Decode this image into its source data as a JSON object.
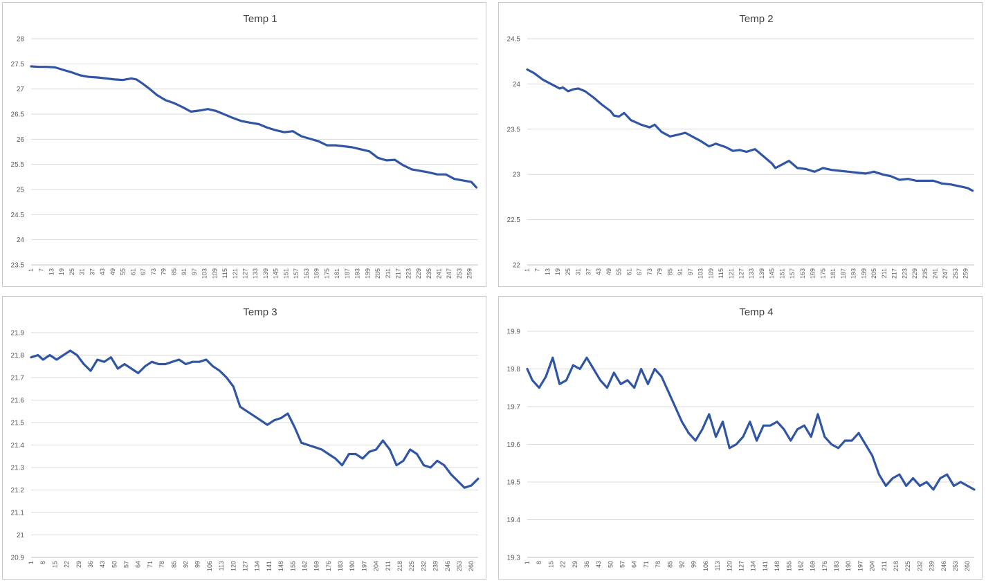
{
  "style": {
    "line_color": "#2f55a4",
    "grid_color": "#d9d9d9"
  },
  "chart_data": [
    {
      "type": "line",
      "title": "Temp 1",
      "ylim": [
        23.5,
        28
      ],
      "yticks": [
        "23.5",
        "24",
        "24.5",
        "25",
        "25.5",
        "26",
        "26.5",
        "27",
        "27.5",
        "28"
      ],
      "xticks": [
        "1",
        "7",
        "13",
        "19",
        "25",
        "31",
        "37",
        "43",
        "49",
        "55",
        "61",
        "67",
        "73",
        "79",
        "85",
        "91",
        "97",
        "103",
        "109",
        "115",
        "121",
        "127",
        "133",
        "139",
        "145",
        "151",
        "157",
        "163",
        "169",
        "175",
        "181",
        "187",
        "193",
        "199",
        "205",
        "211",
        "217",
        "223",
        "229",
        "235",
        "241",
        "247",
        "253",
        "259"
      ],
      "grid": true,
      "series": [
        {
          "x": [
            1,
            6,
            10,
            15,
            20,
            25,
            30,
            35,
            40,
            45,
            50,
            55,
            60,
            63,
            66,
            70,
            75,
            80,
            85,
            90,
            95,
            100,
            105,
            110,
            115,
            120,
            125,
            130,
            135,
            140,
            145,
            150,
            155,
            160,
            165,
            170,
            175,
            180,
            185,
            190,
            195,
            200,
            205,
            210,
            215,
            220,
            225,
            230,
            235,
            240,
            245,
            250,
            255,
            260,
            263
          ],
          "values": [
            27.45,
            27.44,
            27.44,
            27.43,
            27.38,
            27.33,
            27.27,
            27.24,
            27.23,
            27.21,
            27.19,
            27.18,
            27.21,
            27.19,
            27.12,
            27.02,
            26.88,
            26.78,
            26.72,
            26.64,
            26.55,
            26.57,
            26.6,
            26.56,
            26.49,
            26.42,
            26.36,
            26.33,
            26.3,
            26.23,
            26.18,
            26.14,
            26.16,
            26.06,
            26.01,
            25.96,
            25.88,
            25.88,
            25.86,
            25.84,
            25.8,
            25.76,
            25.63,
            25.58,
            25.59,
            25.48,
            25.4,
            25.37,
            25.34,
            25.3,
            25.3,
            25.21,
            25.18,
            25.15,
            25.04
          ]
        }
      ]
    },
    {
      "type": "line",
      "title": "Temp 2",
      "ylim": [
        22,
        24.5
      ],
      "yticks": [
        "22",
        "22.5",
        "23",
        "23.5",
        "24",
        "24.5"
      ],
      "xticks": [
        "1",
        "7",
        "13",
        "19",
        "25",
        "31",
        "37",
        "43",
        "49",
        "55",
        "61",
        "67",
        "73",
        "79",
        "85",
        "91",
        "97",
        "103",
        "109",
        "115",
        "121",
        "127",
        "133",
        "139",
        "145",
        "151",
        "157",
        "163",
        "169",
        "175",
        "181",
        "187",
        "193",
        "199",
        "205",
        "211",
        "217",
        "223",
        "229",
        "235",
        "241",
        "247",
        "253",
        "259"
      ],
      "grid": true,
      "series": [
        {
          "x": [
            1,
            5,
            10,
            15,
            20,
            22,
            25,
            28,
            31,
            35,
            40,
            45,
            50,
            52,
            55,
            58,
            62,
            68,
            73,
            76,
            80,
            85,
            90,
            94,
            98,
            103,
            108,
            112,
            118,
            122,
            126,
            130,
            135,
            140,
            145,
            147,
            150,
            155,
            160,
            165,
            170,
            175,
            180,
            185,
            190,
            195,
            200,
            205,
            210,
            215,
            220,
            225,
            230,
            235,
            240,
            245,
            250,
            255,
            260,
            263
          ],
          "values": [
            24.16,
            24.12,
            24.05,
            24.0,
            23.95,
            23.96,
            23.92,
            23.94,
            23.95,
            23.92,
            23.85,
            23.77,
            23.7,
            23.65,
            23.64,
            23.68,
            23.6,
            23.55,
            23.52,
            23.55,
            23.47,
            23.42,
            23.44,
            23.46,
            23.42,
            23.37,
            23.31,
            23.34,
            23.3,
            23.26,
            23.27,
            23.25,
            23.28,
            23.2,
            23.12,
            23.07,
            23.1,
            23.15,
            23.07,
            23.06,
            23.03,
            23.07,
            23.05,
            23.04,
            23.03,
            23.02,
            23.01,
            23.03,
            23.0,
            22.98,
            22.94,
            22.95,
            22.93,
            22.93,
            22.93,
            22.9,
            22.89,
            22.87,
            22.85,
            22.82
          ]
        }
      ]
    },
    {
      "type": "line",
      "title": "Temp 3",
      "ylim": [
        20.9,
        21.9
      ],
      "yticks": [
        "20.9",
        "21",
        "21.1",
        "21.2",
        "21.3",
        "21.4",
        "21.5",
        "21.6",
        "21.7",
        "21.8",
        "21.9"
      ],
      "xticks": [
        "1",
        "8",
        "15",
        "22",
        "29",
        "36",
        "43",
        "50",
        "57",
        "64",
        "71",
        "78",
        "85",
        "92",
        "99",
        "106",
        "113",
        "120",
        "127",
        "134",
        "141",
        "148",
        "155",
        "162",
        "169",
        "176",
        "183",
        "190",
        "197",
        "204",
        "211",
        "218",
        "225",
        "232",
        "239",
        "246",
        "253",
        "260"
      ],
      "grid": true,
      "series": [
        {
          "x": [
            1,
            5,
            8,
            12,
            16,
            20,
            24,
            28,
            32,
            36,
            40,
            44,
            48,
            52,
            56,
            60,
            64,
            68,
            72,
            76,
            80,
            84,
            88,
            92,
            96,
            100,
            104,
            108,
            112,
            116,
            120,
            124,
            128,
            132,
            136,
            140,
            144,
            148,
            152,
            156,
            160,
            164,
            168,
            172,
            176,
            180,
            184,
            188,
            192,
            196,
            200,
            204,
            208,
            212,
            216,
            220,
            224,
            228,
            232,
            236,
            240,
            244,
            248,
            252,
            256,
            260,
            264
          ],
          "values": [
            21.79,
            21.8,
            21.78,
            21.8,
            21.78,
            21.8,
            21.82,
            21.8,
            21.76,
            21.73,
            21.78,
            21.77,
            21.79,
            21.74,
            21.76,
            21.74,
            21.72,
            21.75,
            21.77,
            21.76,
            21.76,
            21.77,
            21.78,
            21.76,
            21.77,
            21.77,
            21.78,
            21.75,
            21.73,
            21.7,
            21.66,
            21.57,
            21.55,
            21.53,
            21.51,
            21.49,
            21.51,
            21.52,
            21.54,
            21.48,
            21.41,
            21.4,
            21.39,
            21.38,
            21.36,
            21.34,
            21.31,
            21.36,
            21.36,
            21.34,
            21.37,
            21.38,
            21.42,
            21.38,
            21.31,
            21.33,
            21.38,
            21.36,
            21.31,
            21.3,
            21.33,
            21.31,
            21.27,
            21.24,
            21.21,
            21.22,
            21.25
          ]
        }
      ]
    },
    {
      "type": "line",
      "title": "Temp 4",
      "ylim": [
        19.3,
        19.9
      ],
      "yticks": [
        "19.3",
        "19.4",
        "19.5",
        "19.6",
        "19.7",
        "19.8",
        "19.9"
      ],
      "xticks": [
        "1",
        "8",
        "15",
        "22",
        "29",
        "36",
        "43",
        "50",
        "57",
        "64",
        "71",
        "78",
        "85",
        "92",
        "99",
        "106",
        "113",
        "120",
        "127",
        "134",
        "141",
        "148",
        "155",
        "162",
        "169",
        "176",
        "183",
        "190",
        "197",
        "204",
        "211",
        "218",
        "225",
        "232",
        "239",
        "246",
        "253",
        "260"
      ],
      "grid": true,
      "series": [
        {
          "x": [
            1,
            4,
            8,
            12,
            16,
            20,
            24,
            28,
            32,
            36,
            40,
            44,
            48,
            52,
            56,
            60,
            64,
            68,
            72,
            76,
            80,
            84,
            88,
            92,
            96,
            100,
            104,
            108,
            112,
            116,
            120,
            124,
            128,
            132,
            136,
            140,
            144,
            148,
            152,
            156,
            160,
            164,
            168,
            172,
            176,
            180,
            184,
            188,
            192,
            196,
            200,
            204,
            208,
            212,
            216,
            220,
            224,
            228,
            232,
            236,
            240,
            244,
            248,
            252,
            256,
            260,
            264
          ],
          "values": [
            19.8,
            19.77,
            19.75,
            19.78,
            19.83,
            19.76,
            19.77,
            19.81,
            19.8,
            19.83,
            19.8,
            19.77,
            19.75,
            19.79,
            19.76,
            19.77,
            19.75,
            19.8,
            19.76,
            19.8,
            19.78,
            19.74,
            19.7,
            19.66,
            19.63,
            19.61,
            19.64,
            19.68,
            19.62,
            19.66,
            19.59,
            19.6,
            19.62,
            19.66,
            19.61,
            19.65,
            19.65,
            19.66,
            19.64,
            19.61,
            19.64,
            19.65,
            19.62,
            19.68,
            19.62,
            19.6,
            19.59,
            19.61,
            19.61,
            19.63,
            19.6,
            19.57,
            19.52,
            19.49,
            19.51,
            19.52,
            19.49,
            19.51,
            19.49,
            19.5,
            19.48,
            19.51,
            19.52,
            19.49,
            19.5,
            19.49,
            19.48
          ]
        }
      ]
    }
  ]
}
